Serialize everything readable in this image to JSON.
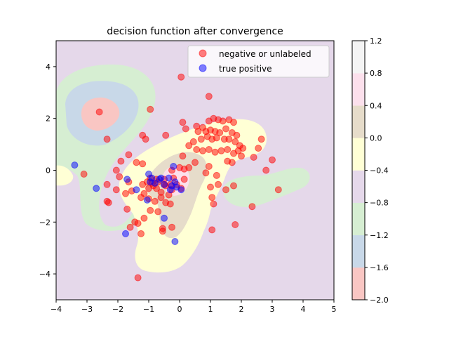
{
  "chart_data": {
    "type": "scatter",
    "title": "decision function after convergence",
    "xlabel": "",
    "ylabel": "",
    "xlim": [
      -4,
      5
    ],
    "ylim": [
      -5,
      5
    ],
    "xticks": [
      -4,
      -3,
      -2,
      -1,
      0,
      1,
      2,
      3,
      4,
      5
    ],
    "yticks": [
      -4,
      -2,
      0,
      2,
      4
    ],
    "grid": false,
    "legend_position": "top-right",
    "background": {
      "type": "filled-contour",
      "levels": [
        -2.0,
        -1.6,
        -1.2,
        -0.8,
        -0.4,
        0.0,
        0.4,
        0.8,
        1.2
      ],
      "colors": [
        "#f9c6c3",
        "#c8d8e8",
        "#d6eed2",
        "#e5d8ea",
        "#ffffd5",
        "#e6dcca",
        "#fce0ec",
        "#f4f4f4"
      ],
      "colorbar_ticks": [
        "1.2",
        "0.8",
        "0.4",
        "0.0",
        "−0.4",
        "−0.8",
        "−1.2",
        "−1.6",
        "−2.0"
      ]
    },
    "series": [
      {
        "name": "negative or unlabeled",
        "color": "#ff0000",
        "points": [
          [
            -2.6,
            2.25
          ],
          [
            -2.35,
            1.2
          ],
          [
            0.05,
            3.6
          ],
          [
            0.95,
            2.85
          ],
          [
            -0.95,
            2.35
          ],
          [
            -1.2,
            1.35
          ],
          [
            -1.1,
            1.2
          ],
          [
            -0.45,
            1.35
          ],
          [
            0.55,
            1.7
          ],
          [
            0.75,
            1.65
          ],
          [
            0.95,
            1.9
          ],
          [
            1.1,
            2.0
          ],
          [
            1.25,
            1.95
          ],
          [
            1.4,
            1.9
          ],
          [
            1.6,
            1.95
          ],
          [
            1.75,
            1.85
          ],
          [
            0.6,
            1.5
          ],
          [
            0.85,
            1.5
          ],
          [
            1.0,
            1.55
          ],
          [
            1.15,
            1.5
          ],
          [
            1.3,
            1.45
          ],
          [
            1.5,
            1.6
          ],
          [
            1.7,
            1.45
          ],
          [
            1.85,
            1.35
          ],
          [
            0.1,
            1.85
          ],
          [
            0.2,
            1.6
          ],
          [
            0.45,
            1.1
          ],
          [
            0.7,
            1.2
          ],
          [
            0.9,
            1.3
          ],
          [
            1.05,
            1.2
          ],
          [
            1.2,
            1.25
          ],
          [
            1.45,
            1.2
          ],
          [
            1.6,
            1.2
          ],
          [
            1.8,
            1.1
          ],
          [
            1.95,
            0.95
          ],
          [
            2.05,
            0.85
          ],
          [
            1.9,
            0.75
          ],
          [
            0.3,
            0.95
          ],
          [
            0.55,
            0.8
          ],
          [
            0.75,
            0.75
          ],
          [
            0.95,
            0.8
          ],
          [
            1.15,
            0.7
          ],
          [
            1.35,
            0.75
          ],
          [
            1.55,
            0.8
          ],
          [
            1.75,
            0.65
          ],
          [
            2.0,
            0.55
          ],
          [
            2.4,
            0.5
          ],
          [
            2.55,
            0.85
          ],
          [
            2.65,
            1.2
          ],
          [
            1.55,
            0.35
          ],
          [
            1.7,
            0.3
          ],
          [
            3.0,
            0.4
          ],
          [
            2.8,
            0.0
          ],
          [
            3.2,
            -0.75
          ],
          [
            2.35,
            -1.4
          ],
          [
            1.8,
            -2.1
          ],
          [
            1.05,
            -1.05
          ],
          [
            1.1,
            -1.3
          ],
          [
            1.25,
            -0.55
          ],
          [
            1.5,
            -0.75
          ],
          [
            1.2,
            -0.2
          ],
          [
            0.95,
            0.15
          ],
          [
            0.5,
            0.3
          ],
          [
            0.3,
            0.1
          ],
          [
            0.15,
            0.05
          ],
          [
            0.0,
            0.1
          ],
          [
            0.85,
            -0.1
          ],
          [
            1.0,
            -0.65
          ],
          [
            1.75,
            -0.6
          ],
          [
            1.05,
            -2.3
          ],
          [
            -1.65,
            0.6
          ],
          [
            -1.4,
            0.3
          ],
          [
            -1.2,
            0.25
          ],
          [
            -1.9,
            0.35
          ],
          [
            -2.05,
            0.0
          ],
          [
            -1.95,
            -0.25
          ],
          [
            -1.65,
            -0.45
          ],
          [
            -1.55,
            -0.8
          ],
          [
            -1.75,
            -0.9
          ],
          [
            -1.2,
            -0.55
          ],
          [
            -1.05,
            -0.45
          ],
          [
            -0.95,
            -0.3
          ],
          [
            -0.85,
            -0.6
          ],
          [
            -0.75,
            -0.7
          ],
          [
            -0.6,
            -0.85
          ],
          [
            -0.45,
            -0.6
          ],
          [
            -0.35,
            -0.95
          ],
          [
            -0.25,
            -0.75
          ],
          [
            -0.1,
            -0.55
          ],
          [
            0.05,
            -0.7
          ],
          [
            -0.2,
            -0.3
          ],
          [
            -0.5,
            -0.35
          ],
          [
            -0.7,
            -0.45
          ],
          [
            -0.9,
            -0.5
          ],
          [
            -1.0,
            -0.7
          ],
          [
            -1.15,
            -0.9
          ],
          [
            -1.25,
            -1.05
          ],
          [
            -1.0,
            -1.1
          ],
          [
            -0.8,
            -1.2
          ],
          [
            -0.6,
            -1.05
          ],
          [
            -0.45,
            -1.25
          ],
          [
            -0.3,
            -1.3
          ],
          [
            -0.7,
            -1.6
          ],
          [
            -0.55,
            -2.25
          ],
          [
            -0.55,
            -2.35
          ],
          [
            -0.25,
            -2.2
          ],
          [
            -0.95,
            -1.55
          ],
          [
            -1.15,
            -1.85
          ],
          [
            -1.25,
            -2.45
          ],
          [
            -1.45,
            -2.0
          ],
          [
            -1.6,
            -2.2
          ],
          [
            -1.35,
            -2.05
          ],
          [
            -2.05,
            -0.75
          ],
          [
            -2.35,
            -0.55
          ],
          [
            -2.3,
            -1.25
          ],
          [
            -2.35,
            -1.2
          ],
          [
            -1.7,
            -1.5
          ],
          [
            -3.1,
            -0.15
          ],
          [
            -1.35,
            -4.15
          ],
          [
            -0.25,
            0.0
          ],
          [
            -0.75,
            -0.35
          ],
          [
            -0.5,
            -0.55
          ],
          [
            0.15,
            -0.35
          ],
          [
            0.1,
            0.55
          ],
          [
            -0.3,
            -0.55
          ]
        ]
      },
      {
        "name": "true positive",
        "color": "#0000ff",
        "points": [
          [
            -3.4,
            0.2
          ],
          [
            -2.7,
            -0.7
          ],
          [
            -1.7,
            -0.35
          ],
          [
            -1.4,
            -0.75
          ],
          [
            -1.75,
            -2.45
          ],
          [
            -1.0,
            -0.15
          ],
          [
            -0.9,
            -0.3
          ],
          [
            -0.8,
            -0.5
          ],
          [
            -0.65,
            -0.35
          ],
          [
            -0.5,
            -0.55
          ],
          [
            -0.35,
            -0.3
          ],
          [
            -0.25,
            -0.6
          ],
          [
            -0.15,
            -0.45
          ],
          [
            -0.3,
            -0.75
          ],
          [
            -0.1,
            -0.65
          ],
          [
            0.05,
            -0.75
          ],
          [
            -0.2,
            0.15
          ],
          [
            -1.05,
            -1.15
          ],
          [
            -0.5,
            -1.85
          ],
          [
            -0.15,
            -2.75
          ],
          [
            -0.6,
            -0.3
          ],
          [
            -0.95,
            -0.45
          ]
        ]
      }
    ]
  }
}
